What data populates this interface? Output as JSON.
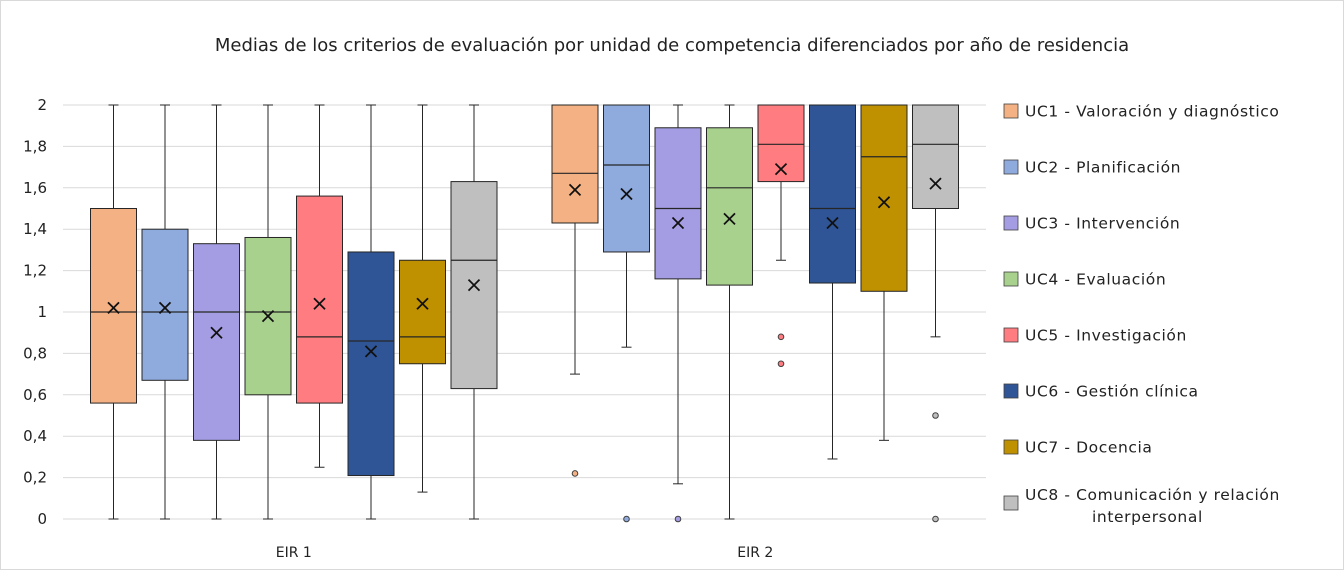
{
  "chart_data": {
    "type": "boxplot",
    "title": "Medias de los criterios de evaluación por unidad de competencia diferenciados por año de residencia",
    "xlabel": "",
    "ylabel": "",
    "ylim": [
      0,
      2
    ],
    "y_ticks": [
      "0",
      "0,2",
      "0,4",
      "0,6",
      "0,8",
      "1",
      "1,2",
      "1,4",
      "1,6",
      "1,8",
      "2"
    ],
    "categories": [
      "EIR 1",
      "EIR 2"
    ],
    "grid": true,
    "legend_position": "right",
    "series": [
      {
        "name": "UC1 - Valoración y diagnóstico",
        "color": "#f4b183",
        "data": [
          {
            "category": "EIR 1",
            "min": 0,
            "q1": 0.56,
            "median": 1.0,
            "q3": 1.5,
            "max": 2.0,
            "mean": 1.02,
            "outliers": []
          },
          {
            "category": "EIR 2",
            "min": 0.7,
            "q1": 1.43,
            "median": 1.67,
            "q3": 2.0,
            "max": 2.0,
            "mean": 1.59,
            "outliers": [
              0.22
            ]
          }
        ]
      },
      {
        "name": "UC2 - Planificación",
        "color": "#8faadc",
        "data": [
          {
            "category": "EIR 1",
            "min": 0,
            "q1": 0.67,
            "median": 1.0,
            "q3": 1.4,
            "max": 2.0,
            "mean": 1.02,
            "outliers": []
          },
          {
            "category": "EIR 2",
            "min": 0.83,
            "q1": 1.29,
            "median": 1.71,
            "q3": 2.0,
            "max": 2.0,
            "mean": 1.57,
            "outliers": [
              0
            ]
          }
        ]
      },
      {
        "name": "UC3 - Intervención",
        "color": "#a49de3",
        "data": [
          {
            "category": "EIR 1",
            "min": 0,
            "q1": 0.38,
            "median": 1.0,
            "q3": 1.33,
            "max": 2.0,
            "mean": 0.9,
            "outliers": []
          },
          {
            "category": "EIR 2",
            "min": 0.17,
            "q1": 1.16,
            "median": 1.5,
            "q3": 1.89,
            "max": 2.0,
            "mean": 1.43,
            "outliers": [
              0
            ]
          }
        ]
      },
      {
        "name": "UC4 - Evaluación",
        "color": "#a9d18e",
        "data": [
          {
            "category": "EIR 1",
            "min": 0,
            "q1": 0.6,
            "median": 1.0,
            "q3": 1.36,
            "max": 2.0,
            "mean": 0.98,
            "outliers": []
          },
          {
            "category": "EIR 2",
            "min": 0,
            "q1": 1.13,
            "median": 1.6,
            "q3": 1.89,
            "max": 2.0,
            "mean": 1.45,
            "outliers": []
          }
        ]
      },
      {
        "name": "UC5 - Investigación",
        "color": "#ff7c80",
        "data": [
          {
            "category": "EIR 1",
            "min": 0.25,
            "q1": 0.56,
            "median": 0.88,
            "q3": 1.56,
            "max": 2.0,
            "mean": 1.04,
            "outliers": []
          },
          {
            "category": "EIR 2",
            "min": 1.25,
            "q1": 1.63,
            "median": 1.81,
            "q3": 2.0,
            "max": 2.0,
            "mean": 1.69,
            "outliers": [
              0.88,
              0.75
            ]
          }
        ]
      },
      {
        "name": "UC6 - Gestión clínica",
        "color": "#2f5597",
        "data": [
          {
            "category": "EIR 1",
            "min": 0,
            "q1": 0.21,
            "median": 0.86,
            "q3": 1.29,
            "max": 2.0,
            "mean": 0.81,
            "outliers": []
          },
          {
            "category": "EIR 2",
            "min": 0.29,
            "q1": 1.14,
            "median": 1.5,
            "q3": 2.0,
            "max": 2.0,
            "mean": 1.43,
            "outliers": []
          }
        ]
      },
      {
        "name": "UC7 - Docencia",
        "color": "#bf9000",
        "data": [
          {
            "category": "EIR 1",
            "min": 0.13,
            "q1": 0.75,
            "median": 0.88,
            "q3": 1.25,
            "max": 2.0,
            "mean": 1.04,
            "outliers": []
          },
          {
            "category": "EIR 2",
            "min": 0.38,
            "q1": 1.1,
            "median": 1.75,
            "q3": 2.0,
            "max": 2.0,
            "mean": 1.53,
            "outliers": []
          }
        ]
      },
      {
        "name": "UC8 - Comunicación y relación interpersonal",
        "color": "#bfbfbf",
        "data": [
          {
            "category": "EIR 1",
            "min": 0,
            "q1": 0.63,
            "median": 1.25,
            "q3": 1.63,
            "max": 2.0,
            "mean": 1.13,
            "outliers": []
          },
          {
            "category": "EIR 2",
            "min": 0.88,
            "q1": 1.5,
            "median": 1.81,
            "q3": 2.0,
            "max": 2.0,
            "mean": 1.62,
            "outliers": [
              0.5,
              0
            ]
          }
        ]
      }
    ]
  },
  "legend": {
    "items": [
      {
        "lines": [
          "UC1 - Valoración y diagnóstico"
        ]
      },
      {
        "lines": [
          "UC2 - Planificación"
        ]
      },
      {
        "lines": [
          "UC3 - Intervención"
        ]
      },
      {
        "lines": [
          "UC4 - Evaluación"
        ]
      },
      {
        "lines": [
          "UC5 - Investigación"
        ]
      },
      {
        "lines": [
          "UC6 - Gestión clínica"
        ]
      },
      {
        "lines": [
          "UC7 - Docencia"
        ]
      },
      {
        "lines": [
          "UC8 - Comunicación y relación",
          "interpersonal"
        ]
      }
    ]
  }
}
